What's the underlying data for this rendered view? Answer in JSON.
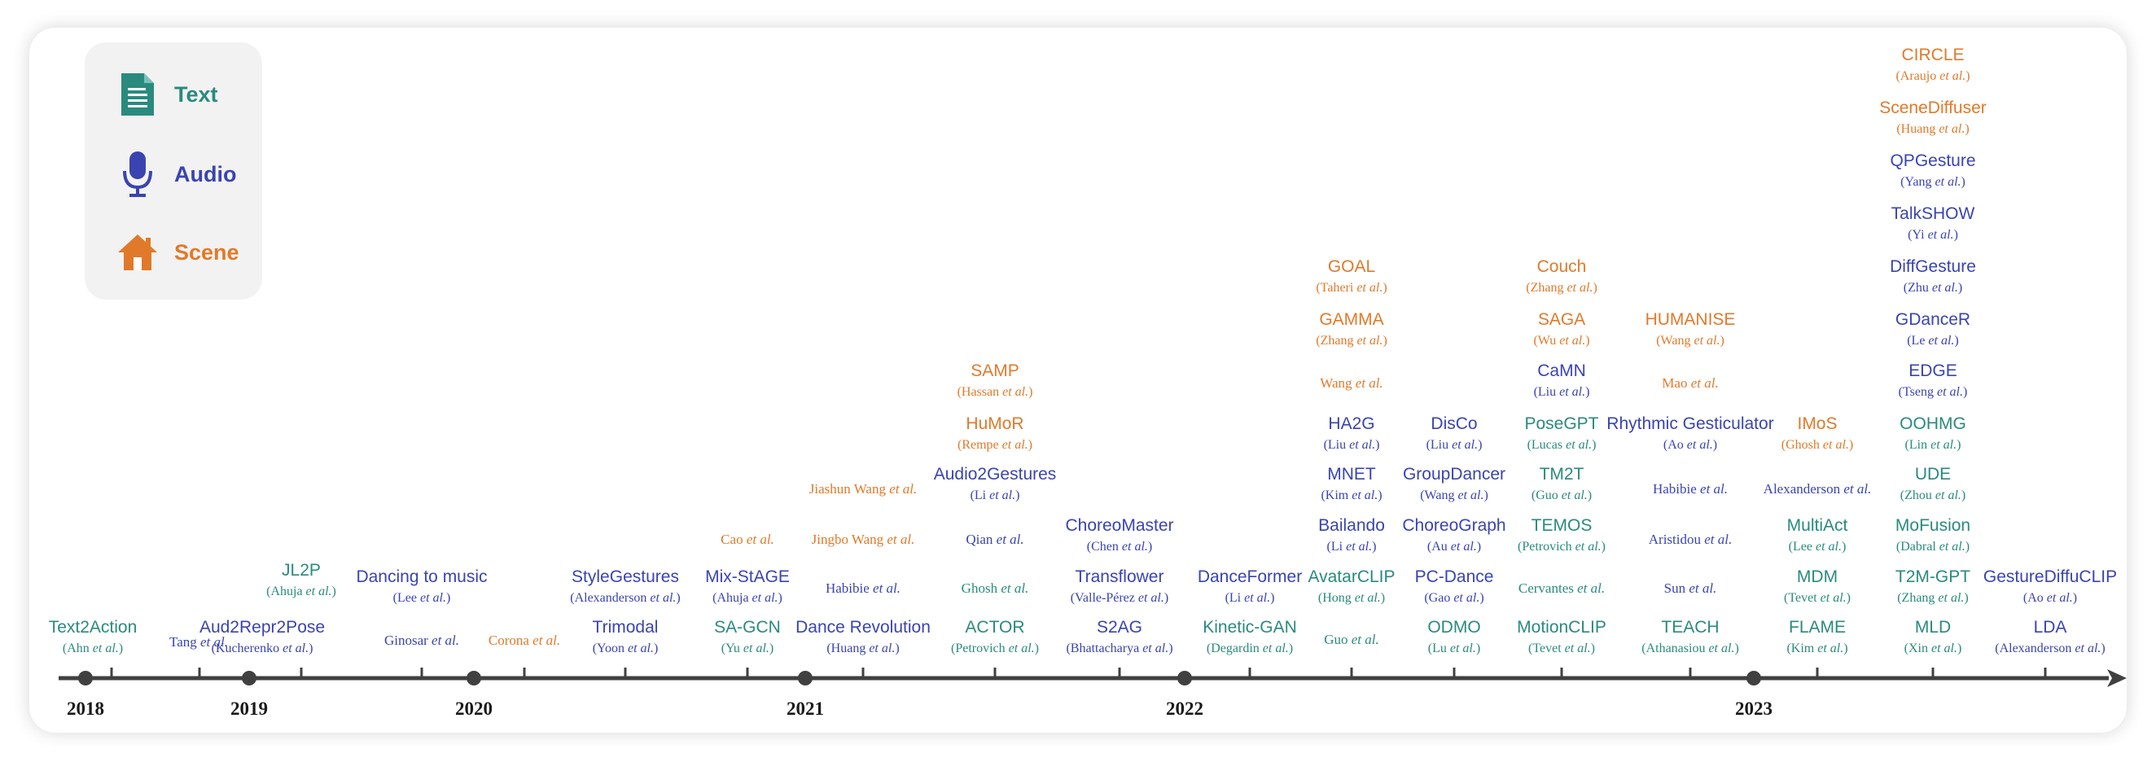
{
  "legend": {
    "text_label": "Text",
    "audio_label": "Audio",
    "scene_label": "Scene"
  },
  "colors": {
    "text": "#2a8a7e",
    "audio": "#3a44b0",
    "scene": "#e07a2a",
    "axis": "#404040"
  },
  "years": [
    "2018",
    "2019",
    "2020",
    "2021",
    "2022",
    "2023"
  ],
  "entries": [
    {
      "name": "Text2Action",
      "authors": "(Ahn et al.)",
      "cat": "text"
    },
    {
      "name": "",
      "authors": "Tang et al.",
      "cat": "audio"
    },
    {
      "name": "Aud2Repr2Pose",
      "authors": "(Kucherenko et al.)",
      "cat": "audio"
    },
    {
      "name": "JL2P",
      "authors": "(Ahuja et al.)",
      "cat": "text"
    },
    {
      "name": "",
      "authors": "Ginosar et al.",
      "cat": "audio"
    },
    {
      "name": "Dancing to music",
      "authors": "(Lee et al.)",
      "cat": "audio"
    },
    {
      "name": "",
      "authors": "Corona et al.",
      "cat": "scene"
    },
    {
      "name": "Trimodal",
      "authors": "(Yoon et al.)",
      "cat": "audio"
    },
    {
      "name": "StyleGestures",
      "authors": "(Alexanderson et al.)",
      "cat": "audio"
    },
    {
      "name": "SA-GCN",
      "authors": "(Yu et al.)",
      "cat": "text"
    },
    {
      "name": "Mix-StAGE",
      "authors": "(Ahuja et al.)",
      "cat": "audio"
    },
    {
      "name": "",
      "authors": "Cao et al.",
      "cat": "scene"
    },
    {
      "name": "Dance Revolution",
      "authors": "(Huang et al.)",
      "cat": "audio"
    },
    {
      "name": "",
      "authors": "Habibie et al.",
      "cat": "audio"
    },
    {
      "name": "",
      "authors": "Jingbo Wang et al.",
      "cat": "scene"
    },
    {
      "name": "",
      "authors": "Jiashun Wang et al.",
      "cat": "scene"
    },
    {
      "name": "ACTOR",
      "authors": "(Petrovich et al.)",
      "cat": "text"
    },
    {
      "name": "",
      "authors": "Ghosh et al.",
      "cat": "text"
    },
    {
      "name": "",
      "authors": "Qian et al.",
      "cat": "audio"
    },
    {
      "name": "Audio2Gestures",
      "authors": "(Li et al.)",
      "cat": "audio"
    },
    {
      "name": "HuMoR",
      "authors": "(Rempe et al.)",
      "cat": "scene"
    },
    {
      "name": "SAMP",
      "authors": "(Hassan et al.)",
      "cat": "scene"
    },
    {
      "name": "S2AG",
      "authors": "(Bhattacharya et al.)",
      "cat": "audio"
    },
    {
      "name": "Transflower",
      "authors": "(Valle-Pérez et al.)",
      "cat": "audio"
    },
    {
      "name": "ChoreoMaster",
      "authors": "(Chen et al.)",
      "cat": "audio"
    },
    {
      "name": "Kinetic-GAN",
      "authors": "(Degardin et al.)",
      "cat": "text"
    },
    {
      "name": "DanceFormer",
      "authors": "(Li et al.)",
      "cat": "audio"
    },
    {
      "name": "",
      "authors": "Guo et al.",
      "cat": "text"
    },
    {
      "name": "AvatarCLIP",
      "authors": "(Hong et al.)",
      "cat": "text"
    },
    {
      "name": "Bailando",
      "authors": "(Li et al.)",
      "cat": "audio"
    },
    {
      "name": "MNET",
      "authors": "(Kim et al.)",
      "cat": "audio"
    },
    {
      "name": "HA2G",
      "authors": "(Liu et al.)",
      "cat": "audio"
    },
    {
      "name": "",
      "authors": "Wang et al.",
      "cat": "scene"
    },
    {
      "name": "GAMMA",
      "authors": "(Zhang et al.)",
      "cat": "scene"
    },
    {
      "name": "GOAL",
      "authors": "(Taheri et al.)",
      "cat": "scene"
    },
    {
      "name": "ODMO",
      "authors": "(Lu et al.)",
      "cat": "text"
    },
    {
      "name": "PC-Dance",
      "authors": "(Gao et al.)",
      "cat": "audio"
    },
    {
      "name": "ChoreoGraph",
      "authors": "(Au et al.)",
      "cat": "audio"
    },
    {
      "name": "GroupDancer",
      "authors": "(Wang et al.)",
      "cat": "audio"
    },
    {
      "name": "DisCo",
      "authors": "(Liu et al.)",
      "cat": "audio"
    },
    {
      "name": "MotionCLIP",
      "authors": "(Tevet et al.)",
      "cat": "text"
    },
    {
      "name": "",
      "authors": "Cervantes et al.",
      "cat": "text"
    },
    {
      "name": "TEMOS",
      "authors": "(Petrovich et al.)",
      "cat": "text"
    },
    {
      "name": "TM2T",
      "authors": "(Guo et al.)",
      "cat": "text"
    },
    {
      "name": "PoseGPT",
      "authors": "(Lucas et al.)",
      "cat": "text"
    },
    {
      "name": "CaMN",
      "authors": "(Liu et al.)",
      "cat": "audio"
    },
    {
      "name": "SAGA",
      "authors": "(Wu et al.)",
      "cat": "scene"
    },
    {
      "name": "Couch",
      "authors": "(Zhang et al.)",
      "cat": "scene"
    },
    {
      "name": "TEACH",
      "authors": "(Athanasiou et al.)",
      "cat": "text"
    },
    {
      "name": "",
      "authors": "Sun et al.",
      "cat": "audio"
    },
    {
      "name": "",
      "authors": "Aristidou et al.",
      "cat": "audio"
    },
    {
      "name": "",
      "authors": "Habibie et al.",
      "cat": "audio"
    },
    {
      "name": "Rhythmic Gesticulator",
      "authors": "(Ao et al.)",
      "cat": "audio"
    },
    {
      "name": "",
      "authors": "Mao et al.",
      "cat": "scene"
    },
    {
      "name": "HUMANISE",
      "authors": "(Wang et al.)",
      "cat": "scene"
    },
    {
      "name": "FLAME",
      "authors": "(Kim et al.)",
      "cat": "text"
    },
    {
      "name": "MDM",
      "authors": "(Tevet et al.)",
      "cat": "text"
    },
    {
      "name": "MultiAct",
      "authors": "(Lee et al.)",
      "cat": "text"
    },
    {
      "name": "",
      "authors": "Alexanderson et al.",
      "cat": "audio"
    },
    {
      "name": "IMoS",
      "authors": "(Ghosh et al.)",
      "cat": "scene"
    },
    {
      "name": "MLD",
      "authors": "(Xin et al.)",
      "cat": "text"
    },
    {
      "name": "T2M-GPT",
      "authors": "(Zhang et al.)",
      "cat": "text"
    },
    {
      "name": "MoFusion",
      "authors": "(Dabral et al.)",
      "cat": "text"
    },
    {
      "name": "UDE",
      "authors": "(Zhou et al.)",
      "cat": "text"
    },
    {
      "name": "OOHMG",
      "authors": "(Lin et al.)",
      "cat": "text"
    },
    {
      "name": "EDGE",
      "authors": "(Tseng et al.)",
      "cat": "audio"
    },
    {
      "name": "GDanceR",
      "authors": "(Le et al.)",
      "cat": "audio"
    },
    {
      "name": "DiffGesture",
      "authors": "(Zhu et al.)",
      "cat": "audio"
    },
    {
      "name": "TalkSHOW",
      "authors": "(Yi et al.)",
      "cat": "audio"
    },
    {
      "name": "QPGesture",
      "authors": "(Yang et al.)",
      "cat": "audio"
    },
    {
      "name": "SceneDiffuser",
      "authors": "(Huang et al.)",
      "cat": "scene"
    },
    {
      "name": "CIRCLE",
      "authors": "(Araujo et al.)",
      "cat": "scene"
    },
    {
      "name": "LDA",
      "authors": "(Alexanderson et al.)",
      "cat": "audio"
    },
    {
      "name": "GestureDiffuCLIP",
      "authors": "(Ao et al.)",
      "cat": "audio"
    }
  ]
}
